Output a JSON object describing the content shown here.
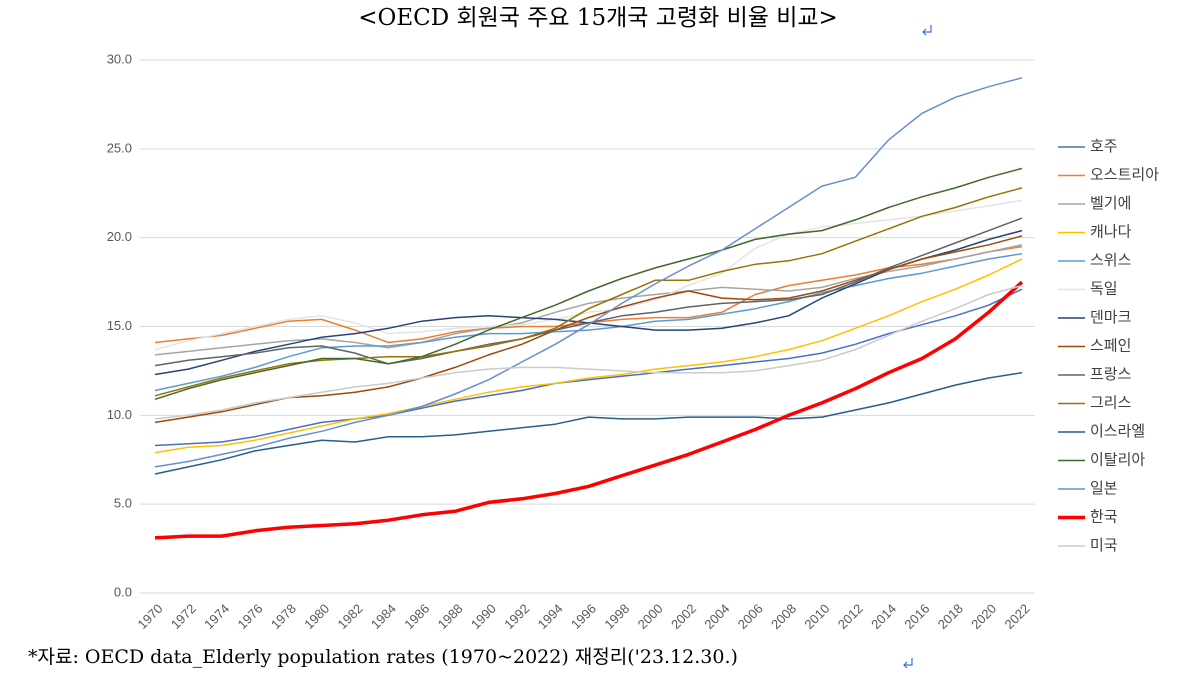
{
  "chart_data": {
    "type": "line",
    "title": "<OECD 회원국 주요 15개국 고령화 비율 비교>",
    "note": "*자료: OECD data_Elderly population rates (1970~2022) 재정리('23.12.30.)",
    "x": [
      1970,
      1972,
      1974,
      1976,
      1978,
      1980,
      1982,
      1984,
      1986,
      1988,
      1990,
      1992,
      1994,
      1996,
      1998,
      2000,
      2002,
      2004,
      2006,
      2008,
      2010,
      2012,
      2014,
      2016,
      2018,
      2020,
      2022
    ],
    "xlim": [
      1970,
      2022
    ],
    "xticks": [
      1970,
      1972,
      1974,
      1976,
      1978,
      1980,
      1982,
      1984,
      1986,
      1988,
      1990,
      1992,
      1994,
      1996,
      1998,
      2000,
      2002,
      2004,
      2006,
      2008,
      2010,
      2012,
      2014,
      2016,
      2018,
      2020,
      2022
    ],
    "ylim": [
      0,
      30
    ],
    "yticks": [
      {
        "value": 0,
        "label": "0.0"
      },
      {
        "value": 5,
        "label": "5.0"
      },
      {
        "value": 10,
        "label": "10.0"
      },
      {
        "value": 15,
        "label": "15.0"
      },
      {
        "value": 20,
        "label": "20.0"
      },
      {
        "value": 25,
        "label": "25.0"
      },
      {
        "value": 30,
        "label": "30.0"
      }
    ],
    "grid": true,
    "legend": "right",
    "series": [
      {
        "name": "호주",
        "color": "#4472C4",
        "values": [
          8.3,
          8.4,
          8.5,
          8.8,
          9.2,
          9.6,
          9.8,
          10.0,
          10.4,
          10.8,
          11.1,
          11.4,
          11.8,
          12.0,
          12.2,
          12.4,
          12.6,
          12.8,
          13.0,
          13.2,
          13.5,
          14.0,
          14.6,
          15.1,
          15.6,
          16.2,
          17.1
        ]
      },
      {
        "name": "오스트리아",
        "color": "#ED7D31",
        "values": [
          14.1,
          14.3,
          14.5,
          14.9,
          15.3,
          15.4,
          14.8,
          14.1,
          14.3,
          14.7,
          14.9,
          15.0,
          15.0,
          15.2,
          15.4,
          15.5,
          15.5,
          15.8,
          16.8,
          17.3,
          17.6,
          17.9,
          18.3,
          18.5,
          18.8,
          19.2,
          19.5
        ]
      },
      {
        "name": "벨기에",
        "color": "#A5A5A5",
        "values": [
          13.4,
          13.6,
          13.8,
          14.0,
          14.2,
          14.3,
          14.1,
          13.8,
          14.1,
          14.6,
          14.9,
          15.2,
          15.8,
          16.3,
          16.6,
          16.8,
          17.0,
          17.2,
          17.1,
          17.0,
          17.2,
          17.7,
          18.1,
          18.4,
          18.8,
          19.2,
          19.6
        ]
      },
      {
        "name": "캐나다",
        "color": "#FFC000",
        "values": [
          7.9,
          8.2,
          8.3,
          8.6,
          9.0,
          9.4,
          9.8,
          10.1,
          10.5,
          10.9,
          11.3,
          11.6,
          11.8,
          12.1,
          12.3,
          12.6,
          12.8,
          13.0,
          13.3,
          13.7,
          14.2,
          14.9,
          15.6,
          16.4,
          17.1,
          17.9,
          18.8
        ]
      },
      {
        "name": "스위스",
        "color": "#5B9BD5",
        "values": [
          11.4,
          11.8,
          12.2,
          12.7,
          13.3,
          13.8,
          13.9,
          13.9,
          14.1,
          14.4,
          14.6,
          14.6,
          14.7,
          14.8,
          15.0,
          15.3,
          15.4,
          15.7,
          16.0,
          16.4,
          16.9,
          17.3,
          17.7,
          18.0,
          18.4,
          18.8,
          19.1
        ]
      },
      {
        "name": "독일",
        "color": "#E4E4E4",
        "values": [
          13.7,
          14.2,
          14.6,
          15.0,
          15.4,
          15.6,
          15.2,
          14.6,
          14.7,
          14.9,
          15.0,
          15.1,
          15.4,
          15.8,
          16.0,
          16.5,
          17.3,
          18.0,
          19.4,
          20.2,
          20.6,
          20.8,
          21.0,
          21.2,
          21.5,
          21.8,
          22.1
        ]
      },
      {
        "name": "덴마크",
        "color": "#264478",
        "values": [
          12.3,
          12.6,
          13.1,
          13.6,
          14.0,
          14.4,
          14.6,
          14.9,
          15.3,
          15.5,
          15.6,
          15.5,
          15.4,
          15.2,
          15.0,
          14.8,
          14.8,
          14.9,
          15.2,
          15.6,
          16.6,
          17.4,
          18.2,
          18.8,
          19.3,
          19.9,
          20.4
        ]
      },
      {
        "name": "스페인",
        "color": "#9E480E",
        "values": [
          9.6,
          9.9,
          10.2,
          10.6,
          11.0,
          11.1,
          11.3,
          11.6,
          12.1,
          12.7,
          13.4,
          14.0,
          14.8,
          15.5,
          16.1,
          16.6,
          17.0,
          16.6,
          16.5,
          16.6,
          17.0,
          17.6,
          18.2,
          18.8,
          19.2,
          19.6,
          20.1
        ]
      },
      {
        "name": "프랑스",
        "color": "#636363",
        "values": [
          12.8,
          13.1,
          13.3,
          13.5,
          13.8,
          13.9,
          13.5,
          12.9,
          13.2,
          13.6,
          14.0,
          14.3,
          14.8,
          15.2,
          15.6,
          15.8,
          16.1,
          16.3,
          16.4,
          16.5,
          16.8,
          17.5,
          18.3,
          19.0,
          19.7,
          20.4,
          21.1
        ]
      },
      {
        "name": "그리스",
        "color": "#997300",
        "values": [
          11.1,
          11.6,
          12.1,
          12.5,
          12.9,
          13.1,
          13.2,
          13.3,
          13.3,
          13.6,
          13.9,
          14.3,
          14.9,
          16.0,
          16.8,
          17.6,
          17.6,
          18.1,
          18.5,
          18.7,
          19.1,
          19.8,
          20.5,
          21.2,
          21.7,
          22.3,
          22.8
        ]
      },
      {
        "name": "이스라엘",
        "color": "#255E91",
        "values": [
          6.7,
          7.1,
          7.5,
          8.0,
          8.3,
          8.6,
          8.5,
          8.8,
          8.8,
          8.9,
          9.1,
          9.3,
          9.5,
          9.9,
          9.8,
          9.8,
          9.9,
          9.9,
          9.9,
          9.8,
          9.9,
          10.3,
          10.7,
          11.2,
          11.7,
          12.1,
          12.4
        ]
      },
      {
        "name": "이탈리아",
        "color": "#43682B",
        "values": [
          10.9,
          11.5,
          12.0,
          12.4,
          12.8,
          13.2,
          13.2,
          12.9,
          13.3,
          14.0,
          14.8,
          15.5,
          16.2,
          17.0,
          17.7,
          18.3,
          18.8,
          19.3,
          19.9,
          20.2,
          20.4,
          21.0,
          21.7,
          22.3,
          22.8,
          23.4,
          23.9
        ]
      },
      {
        "name": "일본",
        "color": "#698ED0",
        "values": [
          7.1,
          7.4,
          7.8,
          8.2,
          8.7,
          9.1,
          9.6,
          10.0,
          10.5,
          11.2,
          12.0,
          13.0,
          14.0,
          15.1,
          16.3,
          17.4,
          18.4,
          19.3,
          20.5,
          21.7,
          22.9,
          23.4,
          25.5,
          27.0,
          27.9,
          28.5,
          29.0
        ]
      },
      {
        "name": "한국",
        "color": "#FF0000",
        "width": 3.5,
        "values": [
          3.1,
          3.2,
          3.2,
          3.5,
          3.7,
          3.8,
          3.9,
          4.1,
          4.4,
          4.6,
          5.1,
          5.3,
          5.6,
          6.0,
          6.6,
          7.2,
          7.8,
          8.5,
          9.2,
          10.0,
          10.7,
          11.5,
          12.4,
          13.2,
          14.3,
          15.8,
          17.5
        ]
      },
      {
        "name": "미국",
        "color": "#CBCBCB",
        "values": [
          9.8,
          10.0,
          10.3,
          10.7,
          11.0,
          11.3,
          11.6,
          11.8,
          12.1,
          12.4,
          12.6,
          12.7,
          12.7,
          12.6,
          12.5,
          12.4,
          12.4,
          12.4,
          12.5,
          12.8,
          13.1,
          13.7,
          14.5,
          15.3,
          16.0,
          16.8,
          17.3
        ]
      }
    ]
  }
}
